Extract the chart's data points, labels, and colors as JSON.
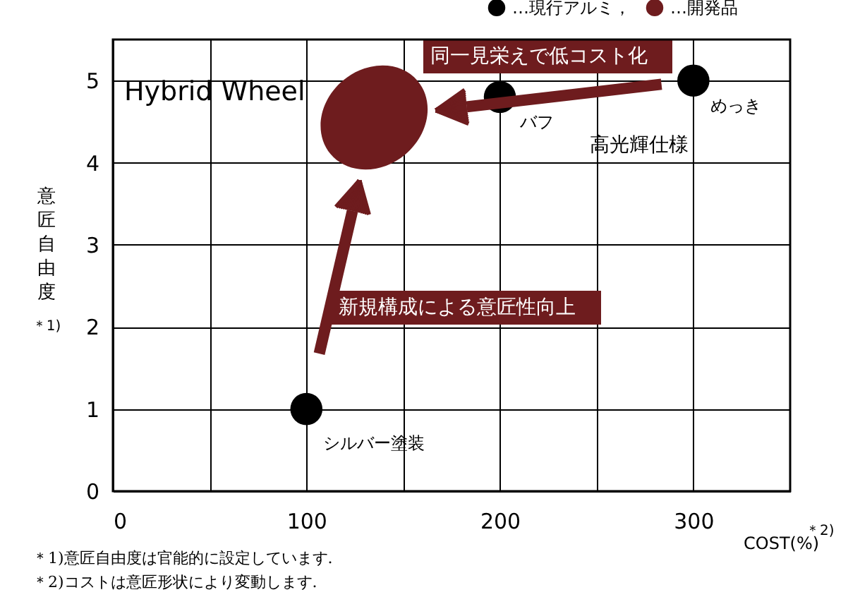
{
  "chart_data": {
    "type": "scatter",
    "xlabel": "COST(%)$^{＊2)}$",
    "ylabel": "意匠自由度$^{＊1)}$",
    "xlim": [
      0,
      350
    ],
    "ylim": [
      0,
      5.5
    ],
    "xticks": [
      0,
      {
        "value": 50,
        "label": null
      },
      100,
      {
        "value": 150,
        "label": null
      },
      200,
      {
        "value": 250,
        "label": null
      },
      300
    ],
    "yticks": [
      0,
      1,
      2,
      3,
      4,
      5
    ],
    "grid": true,
    "legend": "top right",
    "marker": "circle",
    "series": [
      {
        "name": "…現行アルミ，",
        "color": "#000000",
        "x": [
          100,
          200,
          300
        ],
        "values": [
          1,
          4.8,
          5
        ]
      },
      {
        "name": "…開発品",
        "color": "#6e1c1e",
        "x": [
          135
        ],
        "values": [
          4.55
        ]
      }
    ],
    "annotations": [
      "Hybrid Wheel",
      "同一見栄えで低コスト化",
      "新規構成による意匠性向上",
      {
        "text": "シルバー塗装",
        "x": 100,
        "y": 1
      },
      {
        "text": "バフ",
        "x": 200,
        "y": 4.8
      },
      {
        "text": "めっき",
        "x": 300,
        "y": 5
      },
      "高光輝仕様",
      "＊1)意匠自由度は官能的に設定しています.",
      "＊2)コストは意匠形状により変動します."
    ]
  }
}
